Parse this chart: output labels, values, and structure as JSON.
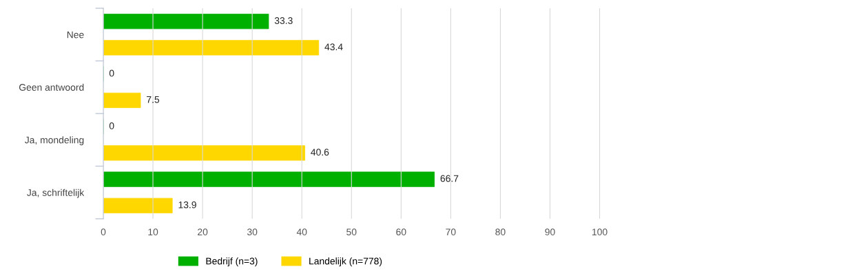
{
  "chart_data": {
    "type": "bar",
    "orientation": "horizontal",
    "categories": [
      "Nee",
      "Geen antwoord",
      "Ja, mondeling",
      "Ja, schriftelijk"
    ],
    "series": [
      {
        "name": "Bedrijf (n=3)",
        "color": "#00b000",
        "values": [
          33.3,
          0,
          0,
          66.7
        ]
      },
      {
        "name": "Landelijk (n=778)",
        "color": "#ffd700",
        "values": [
          43.4,
          7.5,
          40.6,
          13.9
        ]
      }
    ],
    "xlim": [
      0,
      100
    ],
    "xticks": [
      0,
      10,
      20,
      30,
      40,
      50,
      60,
      70,
      80,
      90,
      100
    ],
    "grid": "x",
    "legend": "bottom",
    "data_labels": true
  }
}
